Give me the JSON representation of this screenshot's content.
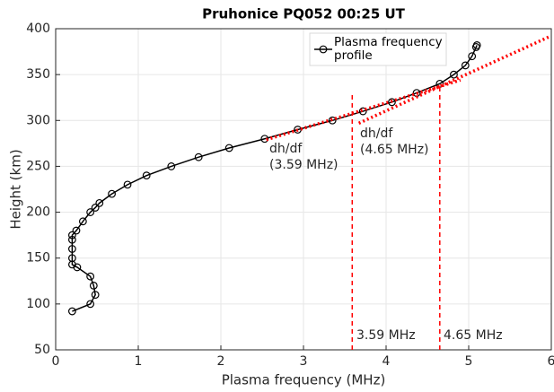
{
  "chart_data": {
    "type": "line",
    "title": "Pruhonice PQ052 00:25 UT",
    "xlabel": "Plasma frequency (MHz)",
    "ylabel": "Height (km)",
    "xlim": [
      0,
      6
    ],
    "xticks": [
      0,
      1,
      2,
      3,
      4,
      5,
      6
    ],
    "ylim": [
      50,
      400
    ],
    "yticks": [
      50,
      100,
      150,
      200,
      250,
      300,
      350,
      400
    ],
    "grid": true,
    "legend": "top",
    "series": [
      {
        "name": "Plasma frequency profile",
        "color": "#000000",
        "x": [
          0.2,
          0.42,
          0.48,
          0.46,
          0.42,
          0.26,
          0.2,
          0.2,
          0.2,
          0.2,
          0.2,
          0.25,
          0.33,
          0.42,
          0.48,
          0.53,
          0.68,
          0.87,
          1.1,
          1.4,
          1.73,
          2.1,
          2.53,
          2.93,
          3.35,
          3.72,
          4.07,
          4.37,
          4.65,
          4.82,
          4.96,
          5.04,
          5.09,
          5.1
        ],
        "values": [
          92,
          100,
          110,
          120,
          130,
          140,
          143,
          150,
          160,
          170,
          175,
          180,
          190,
          200,
          205,
          210,
          220,
          230,
          240,
          250,
          260,
          270,
          280,
          290,
          300,
          310,
          320,
          330,
          340,
          350,
          360,
          370,
          380,
          382
        ]
      }
    ],
    "tangents": [
      {
        "color": "#ff0000",
        "x": [
          2.55,
          4.9
        ],
        "y": [
          279,
          344
        ]
      },
      {
        "color": "#ff0000",
        "x": [
          3.67,
          5.97
        ],
        "y": [
          297,
          391
        ]
      }
    ],
    "vlines": [
      {
        "color": "#ff0000",
        "x": 3.59,
        "y": [
          50,
          329
        ]
      },
      {
        "color": "#ff0000",
        "x": 4.65,
        "y": [
          50,
          340
        ]
      }
    ],
    "annotations": [
      "dh/df",
      "(3.59 MHz)",
      "dh/df",
      "(4.65 MHz)",
      "3.59 MHz",
      "4.65 MHz"
    ]
  }
}
